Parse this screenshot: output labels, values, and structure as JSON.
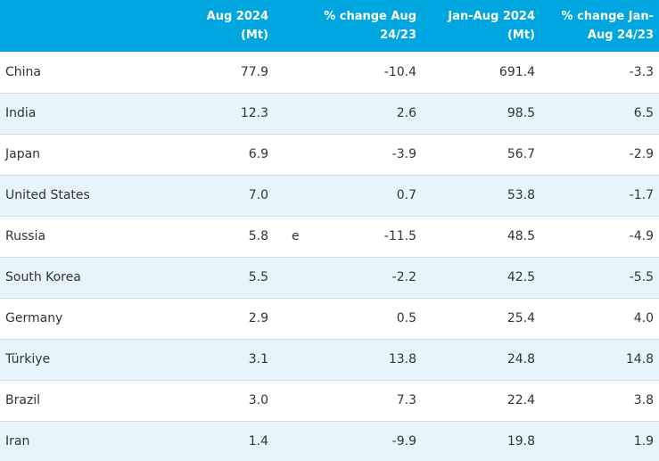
{
  "header": {
    "col0": "",
    "col1": [
      "Aug 2024",
      "(Mt)"
    ],
    "col2": [
      "% change Aug",
      "24/23"
    ],
    "col3": [
      "Jan-Aug 2024",
      "(Mt)"
    ],
    "col4": [
      "% change Jan-",
      "Aug 24/23"
    ]
  },
  "rows": [
    {
      "country": "China",
      "aug": "77.9",
      "flag": "",
      "aug_change": "-10.4",
      "ytd": "691.4",
      "ytd_change": "-3.3"
    },
    {
      "country": "India",
      "aug": "12.3",
      "flag": "",
      "aug_change": "2.6",
      "ytd": "98.5",
      "ytd_change": "6.5"
    },
    {
      "country": "Japan",
      "aug": "6.9",
      "flag": "",
      "aug_change": "-3.9",
      "ytd": "56.7",
      "ytd_change": "-2.9"
    },
    {
      "country": "United States",
      "aug": "7.0",
      "flag": "",
      "aug_change": "0.7",
      "ytd": "53.8",
      "ytd_change": "-1.7"
    },
    {
      "country": "Russia",
      "aug": "5.8",
      "flag": "e",
      "aug_change": "-11.5",
      "ytd": "48.5",
      "ytd_change": "-4.9"
    },
    {
      "country": "South Korea",
      "aug": "5.5",
      "flag": "",
      "aug_change": "-2.2",
      "ytd": "42.5",
      "ytd_change": "-5.5"
    },
    {
      "country": "Germany",
      "aug": "2.9",
      "flag": "",
      "aug_change": "0.5",
      "ytd": "25.4",
      "ytd_change": "4.0"
    },
    {
      "country": "Türkiye",
      "aug": "3.1",
      "flag": "",
      "aug_change": "13.8",
      "ytd": "24.8",
      "ytd_change": "14.8"
    },
    {
      "country": "Brazil",
      "aug": "3.0",
      "flag": "",
      "aug_change": "7.3",
      "ytd": "22.4",
      "ytd_change": "3.8"
    },
    {
      "country": "Iran",
      "aug": "1.4",
      "flag": "",
      "aug_change": "-9.9",
      "ytd": "19.8",
      "ytd_change": "1.9"
    }
  ],
  "colors": {
    "header_bg": "#00a6e0",
    "header_text": "#ffffff",
    "row_alt_bg": "#e6f5fc",
    "row_bg": "#ffffff",
    "text": "#333333"
  }
}
